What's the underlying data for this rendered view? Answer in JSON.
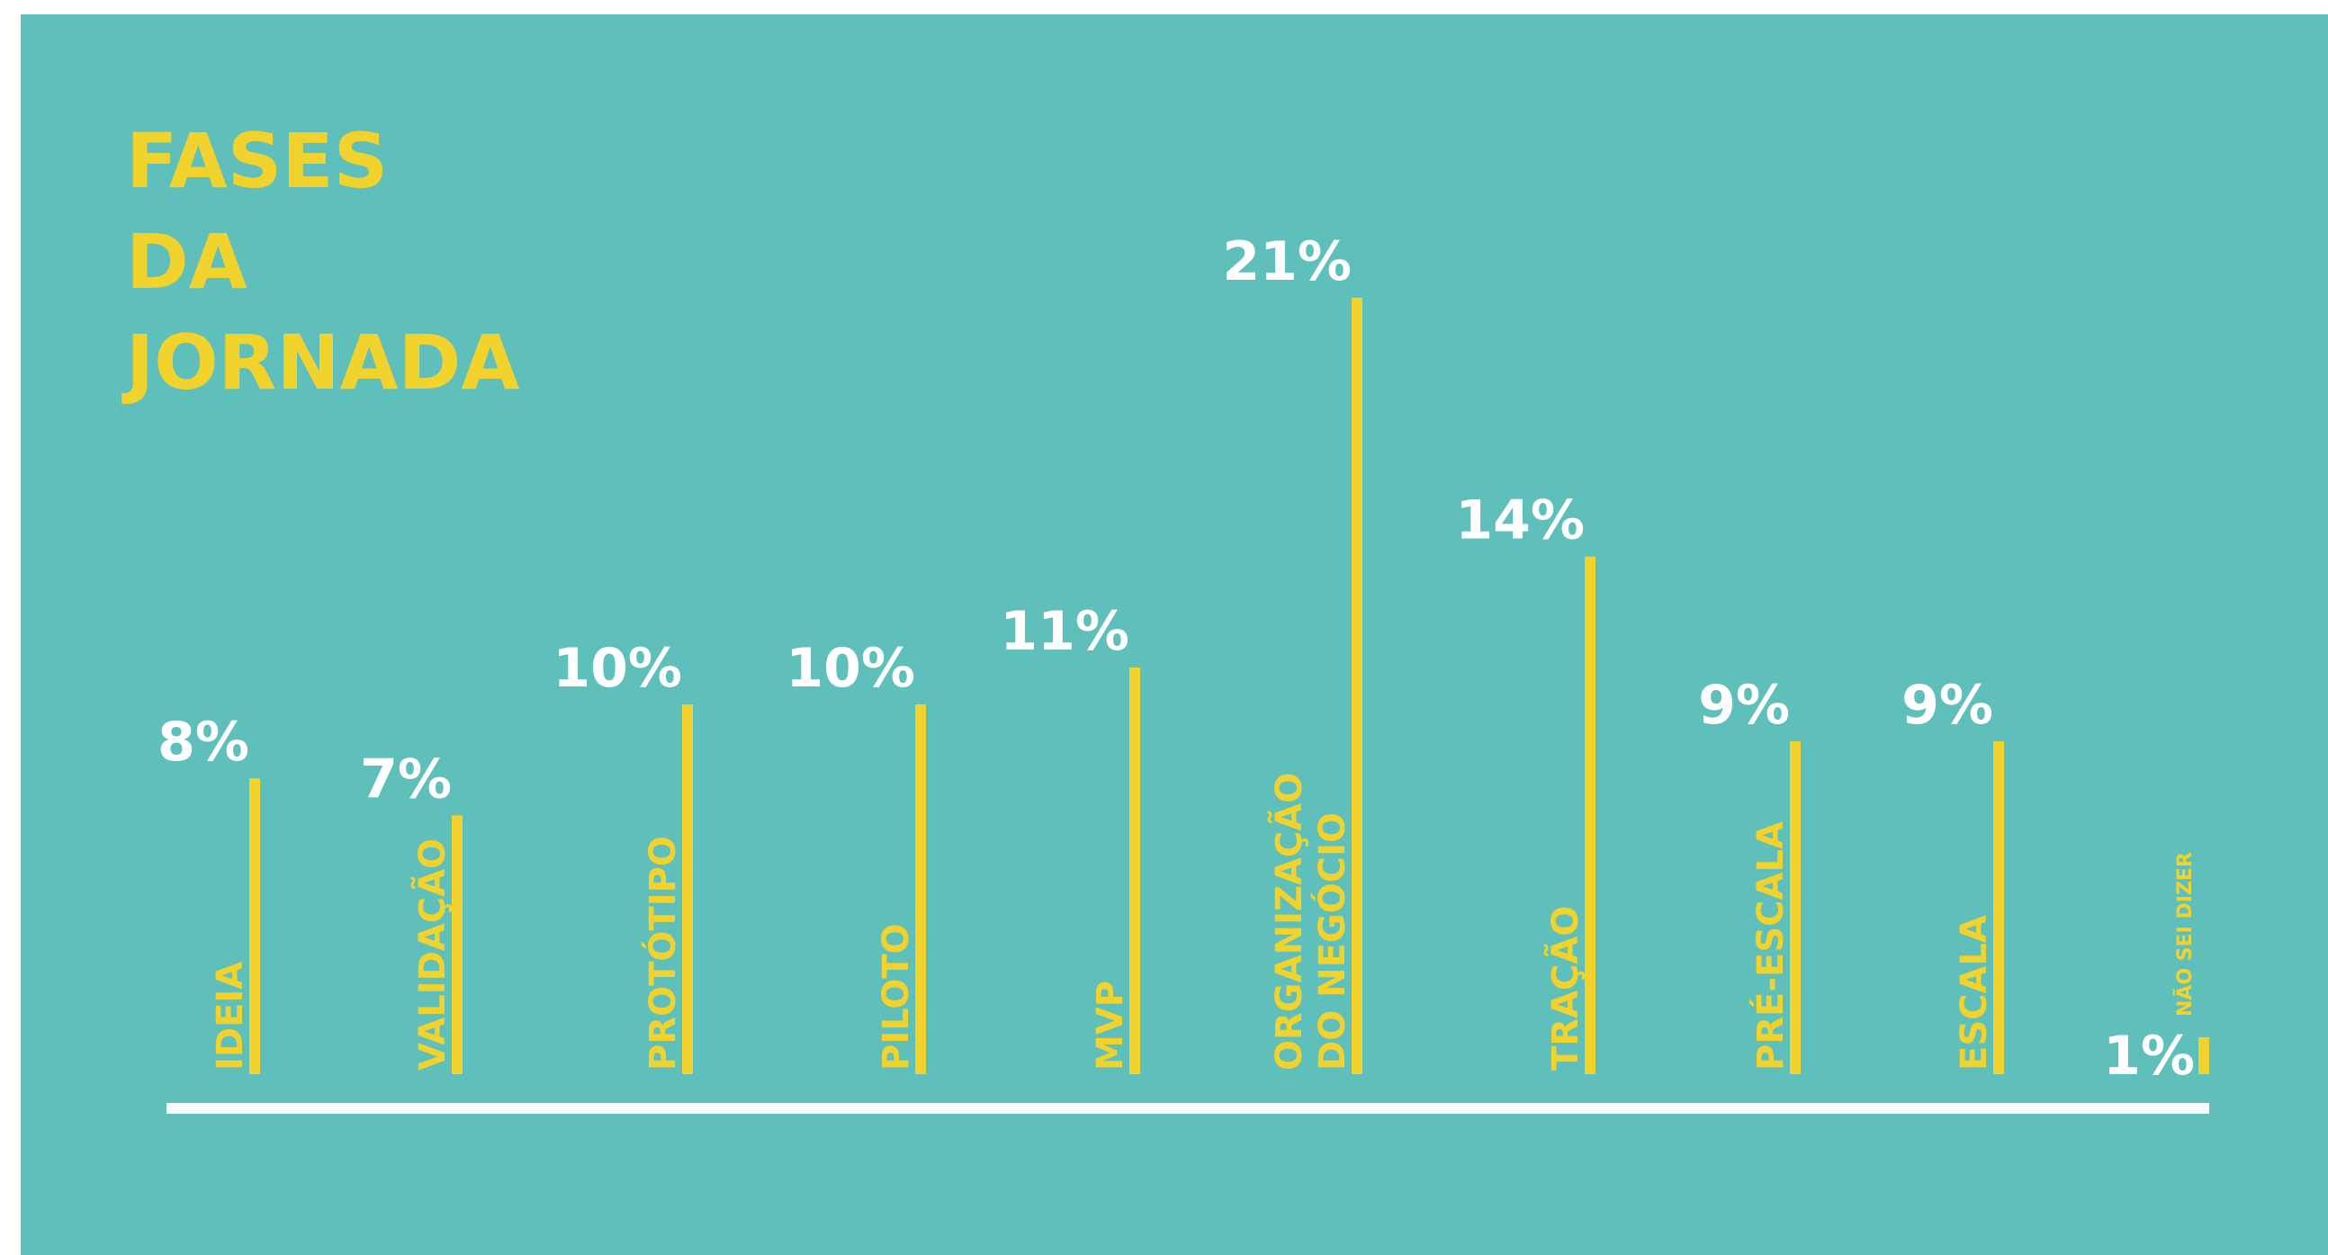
{
  "colors": {
    "background": "#5fbfba",
    "bar": "#f2d32e",
    "value_text": "#ffffff",
    "label_text": "#f2d32e",
    "baseline": "#ffffff"
  },
  "chart_data": {
    "type": "bar",
    "orientation": "vertical",
    "title_lines": [
      "FASES",
      "DA",
      "JORNADA"
    ],
    "title": "FASES DA JORNADA",
    "unit": "%",
    "categories": [
      [
        "IDEIA"
      ],
      [
        "VALIDAÇÃO"
      ],
      [
        "PROTÓTIPO"
      ],
      [
        "PILOTO"
      ],
      [
        "MVP"
      ],
      [
        "ORGANIZAÇÃO",
        "DO NEGÓCIO"
      ],
      [
        "TRAÇÃO"
      ],
      [
        "PRÉ-ESCALA"
      ],
      [
        "ESCALA"
      ],
      [
        "NÃO SEI DIZER"
      ]
    ],
    "values": [
      8,
      7,
      10,
      10,
      11,
      21,
      14,
      9,
      9,
      1
    ],
    "value_labels": [
      "8%",
      "7%",
      "10%",
      "10%",
      "11%",
      "21%",
      "14%",
      "9%",
      "9%",
      "1%"
    ],
    "ylim": [
      0,
      21
    ],
    "grid": false,
    "legend": "none",
    "xlabel": "",
    "ylabel": ""
  }
}
